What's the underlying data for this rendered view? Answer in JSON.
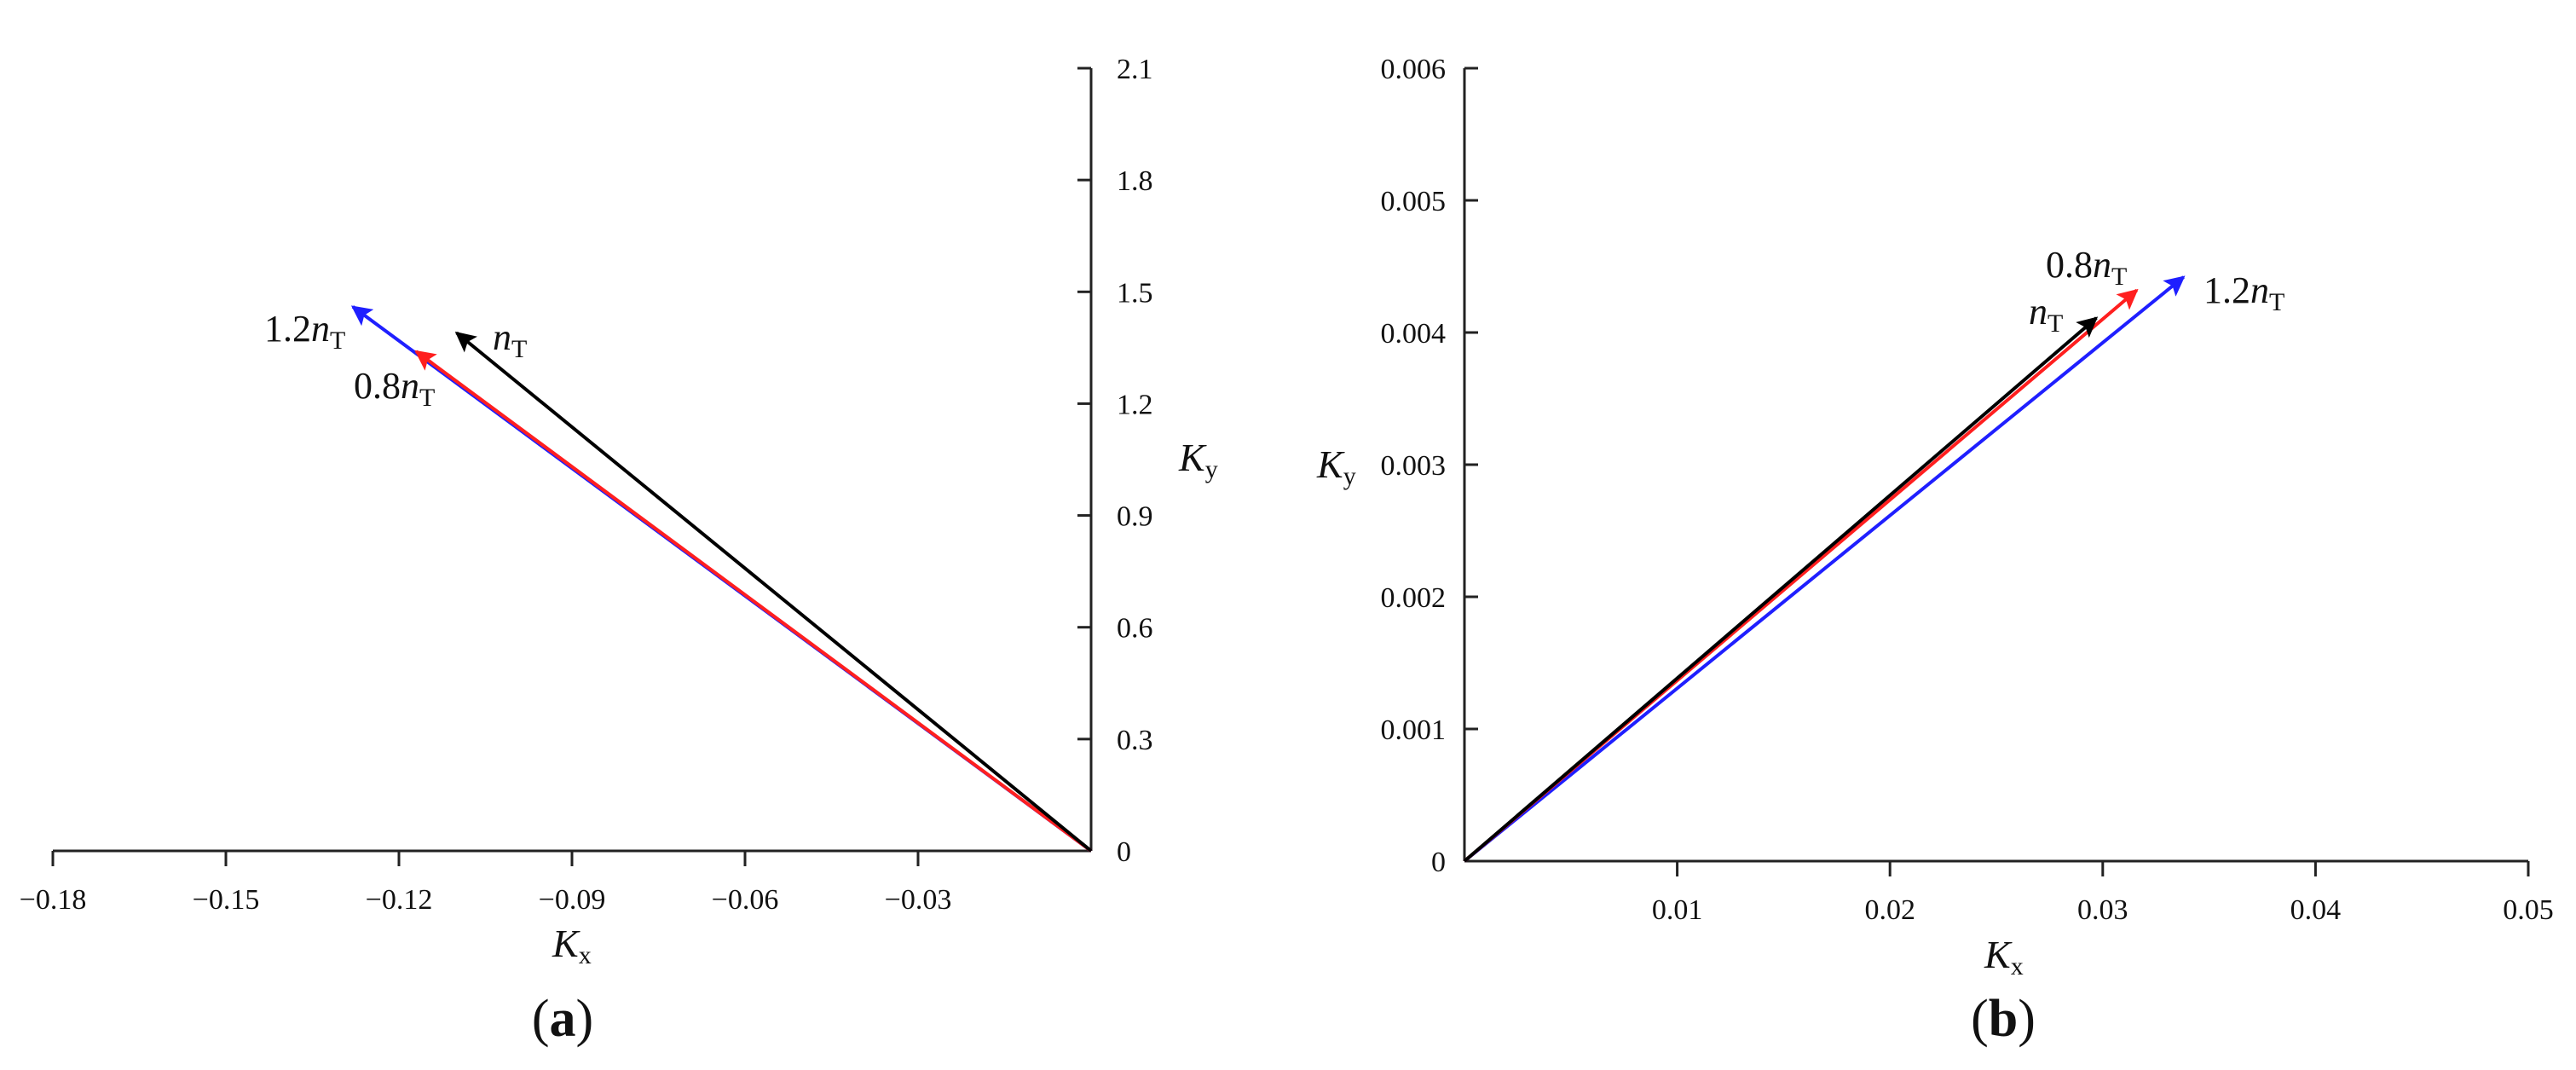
{
  "chart_data": [
    {
      "type": "vector",
      "panel": "(a)",
      "panel_bold": "a",
      "xlabel": "K",
      "xlabel_sub": "x",
      "ylabel": "K",
      "ylabel_sub": "y",
      "xlim": [
        -0.18,
        0
      ],
      "ylim": [
        0,
        2.1
      ],
      "xticks": [
        -0.18,
        -0.15,
        -0.12,
        -0.09,
        -0.06,
        -0.03
      ],
      "xtick_labels": [
        "−0.18",
        "−0.15",
        "−0.12",
        "−0.09",
        "−0.06",
        "−0.03"
      ],
      "yticks": [
        0,
        0.3,
        0.6,
        0.9,
        1.2,
        1.5,
        1.8,
        2.1
      ],
      "ytick_labels": [
        "0",
        "0.3",
        "0.6",
        "0.9",
        "1.2",
        "1.5",
        "1.8",
        "2.1"
      ],
      "series": [
        {
          "name": "1.2n_T",
          "label_coef": "1.2",
          "color": "#1f1fff",
          "x": [
            0,
            -0.128
          ],
          "y": [
            0,
            1.46
          ]
        },
        {
          "name": "0.8n_T",
          "label_coef": "0.8",
          "color": "#ff1f1f",
          "x": [
            0,
            -0.117
          ],
          "y": [
            0,
            1.34
          ]
        },
        {
          "name": "n_T",
          "label_coef": "",
          "color": "#000000",
          "x": [
            0,
            -0.11
          ],
          "y": [
            0,
            1.39
          ]
        }
      ]
    },
    {
      "type": "vector",
      "panel": "(b)",
      "panel_bold": "b",
      "xlabel": "K",
      "xlabel_sub": "x",
      "ylabel": "K",
      "ylabel_sub": "y",
      "xlim": [
        0,
        0.05
      ],
      "ylim": [
        0,
        0.006
      ],
      "xticks": [
        0.01,
        0.02,
        0.03,
        0.04,
        0.05
      ],
      "xtick_labels": [
        "0.01",
        "0.02",
        "0.03",
        "0.04",
        "0.05"
      ],
      "yticks": [
        0,
        0.001,
        0.002,
        0.003,
        0.004,
        0.005,
        0.006
      ],
      "ytick_labels": [
        "0",
        "0.001",
        "0.002",
        "0.003",
        "0.004",
        "0.005",
        "0.006"
      ],
      "series": [
        {
          "name": "1.2n_T",
          "label_coef": "1.2",
          "color": "#1f1fff",
          "x": [
            0,
            0.0338
          ],
          "y": [
            0,
            0.00442
          ]
        },
        {
          "name": "0.8n_T",
          "label_coef": "0.8",
          "color": "#ff1f1f",
          "x": [
            0,
            0.0316
          ],
          "y": [
            0,
            0.00432
          ]
        },
        {
          "name": "n_T",
          "label_coef": "",
          "color": "#000000",
          "x": [
            0,
            0.0297
          ],
          "y": [
            0,
            0.00411
          ]
        }
      ]
    }
  ]
}
